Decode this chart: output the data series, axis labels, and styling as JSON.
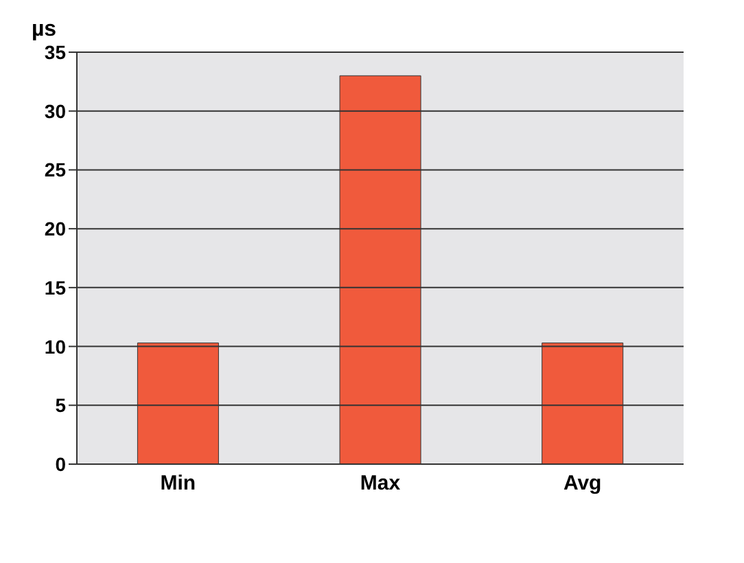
{
  "chart_data": {
    "type": "bar",
    "ylabel": "µs",
    "categories": [
      "Min",
      "Max",
      "Avg"
    ],
    "series": [
      {
        "color": "#f05a3c",
        "values": [
          10.3,
          33,
          10.3
        ]
      }
    ],
    "ylim": [
      0,
      35
    ],
    "yticks": [
      0,
      5,
      10,
      15,
      20,
      25,
      30,
      35
    ],
    "grid": "y"
  }
}
